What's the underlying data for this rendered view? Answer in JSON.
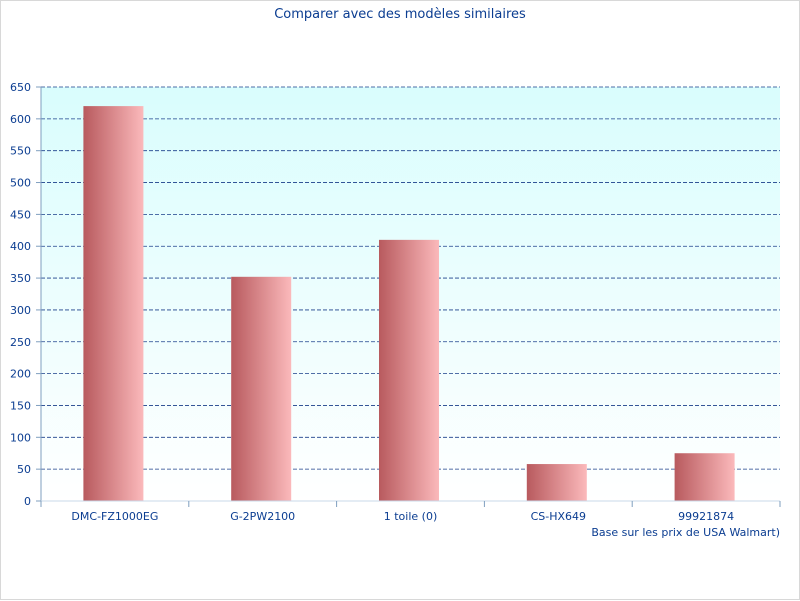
{
  "chart_data": {
    "type": "bar",
    "title": "Comparer avec des modèles similaires",
    "categories": [
      "DMC-FZ1000EG",
      "G-2PW2100",
      "1 toile (0)",
      "CS-HX649",
      "99921874"
    ],
    "values": [
      620,
      352,
      410,
      58,
      75
    ],
    "ylim": [
      0,
      650
    ],
    "y_ticks": [
      0,
      50,
      100,
      150,
      200,
      250,
      300,
      350,
      400,
      450,
      500,
      550,
      600,
      650
    ],
    "grid": true,
    "note": "Base sur les prix de USA Walmart)",
    "colors": {
      "bar_dark": "#b85a5e",
      "bar_light": "#fbb9bb",
      "plot_top": "#d9fdfd",
      "plot_bottom": "#ffffff",
      "grid": "#1a3f8a",
      "text": "#0b3d91"
    }
  }
}
